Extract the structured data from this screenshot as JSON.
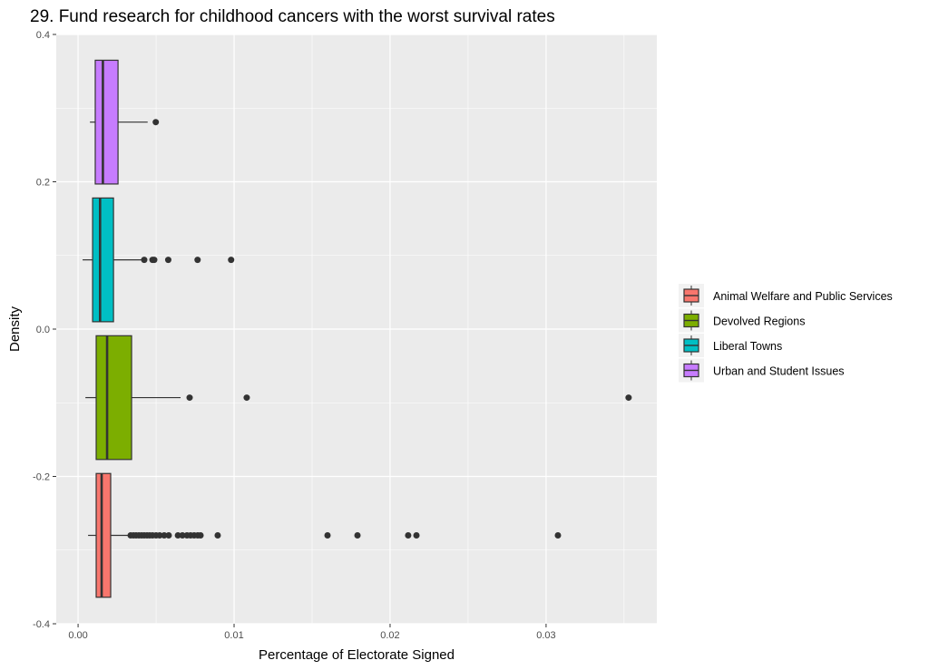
{
  "chart_data": {
    "type": "boxplot",
    "title": "29. Fund research for childhood cancers with the worst survival rates",
    "xlabel": "Percentage of Electorate Signed",
    "ylabel": "Density",
    "xlim": [
      -0.0014,
      0.0371
    ],
    "ylim": [
      -0.4,
      0.4
    ],
    "x_ticks": [
      0,
      0.01,
      0.02,
      0.03
    ],
    "x_tick_labels": [
      "0.00",
      "0.01",
      "0.02",
      "0.03"
    ],
    "x_minor": [
      0.005,
      0.015,
      0.025,
      0.035
    ],
    "y_ticks": [
      0.4,
      0.2,
      0.0,
      -0.2,
      -0.4
    ],
    "y_tick_labels": [
      "0.4",
      "0.2",
      "0.0",
      "-0.2",
      "-0.4"
    ],
    "y_minor": [
      0.3,
      0.1,
      -0.1,
      -0.3
    ],
    "grid": true,
    "legend_position": "right",
    "box_height": 0.168,
    "series": [
      {
        "name": "Animal Welfare and Public Services",
        "color": "#F8766D",
        "y": -0.28,
        "min": 0.00064,
        "q1": 0.00116,
        "median": 0.00151,
        "q3": 0.00209,
        "max": 0.00324,
        "outliers": [
          0.00337,
          0.00355,
          0.00372,
          0.0039,
          0.00407,
          0.00424,
          0.00442,
          0.00459,
          0.00477,
          0.005,
          0.00523,
          0.00552,
          0.00581,
          0.0064,
          0.00669,
          0.00698,
          0.00721,
          0.00744,
          0.00767,
          0.00785,
          0.00895,
          0.01599,
          0.01791,
          0.02116,
          0.02169,
          0.03076
        ]
      },
      {
        "name": "Devolved Regions",
        "color": "#7CAE00",
        "y": -0.093,
        "min": 0.00047,
        "q1": 0.00116,
        "median": 0.00186,
        "q3": 0.00343,
        "max": 0.00657,
        "outliers": [
          0.00715,
          0.01081,
          0.03529
        ]
      },
      {
        "name": "Liberal Towns",
        "color": "#00BFC4",
        "y": 0.094,
        "min": 0.00029,
        "q1": 0.00093,
        "median": 0.00141,
        "q3": 0.00227,
        "max": 0.00413,
        "outliers": [
          0.00424,
          0.00477,
          0.00488,
          0.00578,
          0.00766,
          0.00981
        ]
      },
      {
        "name": "Urban and Student Issues",
        "color": "#C77CFF",
        "y": 0.281,
        "min": 0.00076,
        "q1": 0.0011,
        "median": 0.00159,
        "q3": 0.00256,
        "max": 0.00446,
        "outliers": [
          0.00498
        ]
      }
    ]
  }
}
